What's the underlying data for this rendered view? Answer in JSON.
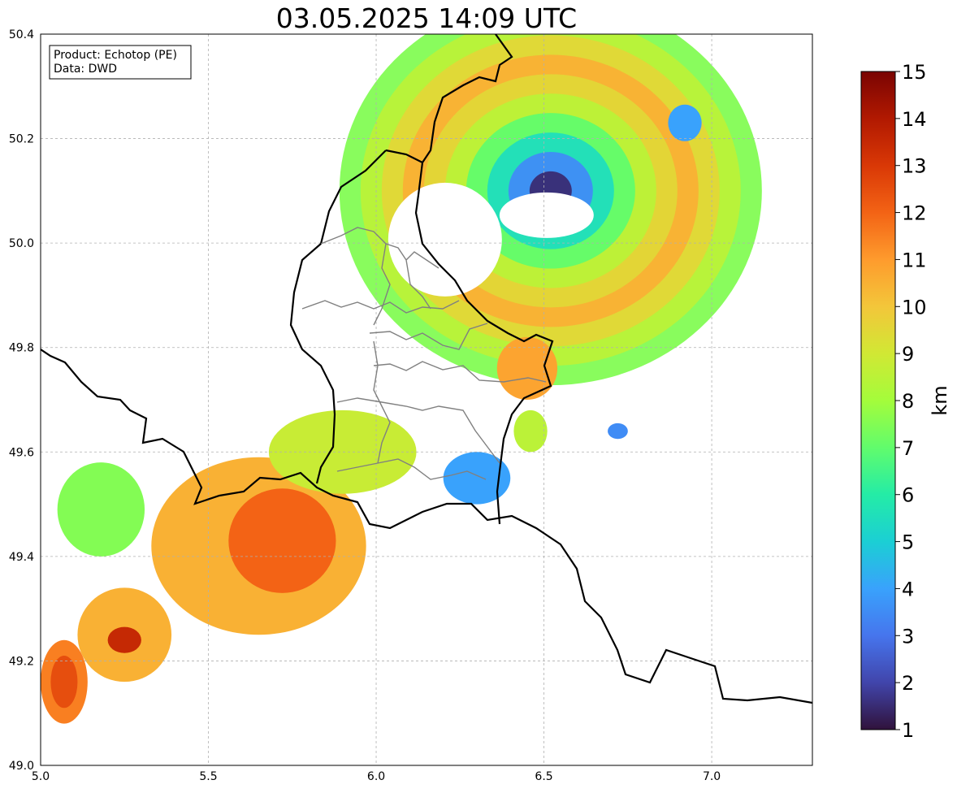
{
  "title": "03.05.2025 14:09 UTC",
  "info_box": {
    "line1": "Product: Echotop (PE)",
    "line2": "Data: DWD"
  },
  "map": {
    "lon_range": [
      5.0,
      7.3
    ],
    "lat_range": [
      49.0,
      50.4
    ],
    "x_ticks": [
      "5.0",
      "5.5",
      "6.0",
      "6.5",
      "7.0"
    ],
    "y_ticks": [
      "50.4",
      "50.2",
      "50.0",
      "49.8",
      "49.6",
      "49.4",
      "49.2",
      "49.0"
    ],
    "grid": true,
    "cells": [
      {
        "lon": 5.25,
        "lat": 49.25,
        "rx": 0.14,
        "ry": 0.09,
        "value": 10.5
      },
      {
        "lon": 5.25,
        "lat": 49.24,
        "rx": 0.05,
        "ry": 0.025,
        "value": 13.5
      },
      {
        "lon": 5.07,
        "lat": 49.16,
        "rx": 0.07,
        "ry": 0.08,
        "value": 11.5
      },
      {
        "lon": 5.07,
        "lat": 49.16,
        "rx": 0.04,
        "ry": 0.05,
        "value": 12.5
      },
      {
        "lon": 5.18,
        "lat": 49.49,
        "rx": 0.13,
        "ry": 0.09,
        "value": 7.5
      },
      {
        "lon": 5.65,
        "lat": 49.42,
        "rx": 0.32,
        "ry": 0.17,
        "value": 10.5
      },
      {
        "lon": 5.72,
        "lat": 49.43,
        "rx": 0.16,
        "ry": 0.1,
        "value": 12.0
      },
      {
        "lon": 5.9,
        "lat": 49.6,
        "rx": 0.22,
        "ry": 0.08,
        "value": 8.8
      },
      {
        "lon": 6.45,
        "lat": 49.76,
        "rx": 0.09,
        "ry": 0.06,
        "value": 10.8
      },
      {
        "lon": 6.46,
        "lat": 49.64,
        "rx": 0.05,
        "ry": 0.04,
        "value": 8.5
      },
      {
        "lon": 6.3,
        "lat": 49.55,
        "rx": 0.1,
        "ry": 0.05,
        "value": 4.0
      },
      {
        "lon": 6.72,
        "lat": 49.64,
        "rx": 0.03,
        "ry": 0.015,
        "value": 3.5
      },
      {
        "lon": 6.92,
        "lat": 50.23,
        "rx": 0.05,
        "ry": 0.035,
        "value": 4.0
      }
    ],
    "ring_center": {
      "lon": 6.52,
      "lat": 50.1
    },
    "ring_values": [
      1.5,
      3.5,
      5.5,
      7.0,
      8.5,
      9.5,
      10.5,
      9.5,
      8.5,
      7.5
    ]
  },
  "colorbar": {
    "label": "km",
    "min": 1,
    "max": 15,
    "ticks": [
      "15",
      "14",
      "13",
      "12",
      "11",
      "10",
      "9",
      "8",
      "7",
      "6",
      "5",
      "4",
      "3",
      "2",
      "1"
    ],
    "stops": [
      "#30123b",
      "#4145ab",
      "#4675ed",
      "#39a2fc",
      "#1bcfd4",
      "#24eca6",
      "#61fc6c",
      "#a4fc3b",
      "#d1e834",
      "#f3c63a",
      "#fe9b2d",
      "#f36315",
      "#d93806",
      "#b11901",
      "#7a0402"
    ]
  }
}
